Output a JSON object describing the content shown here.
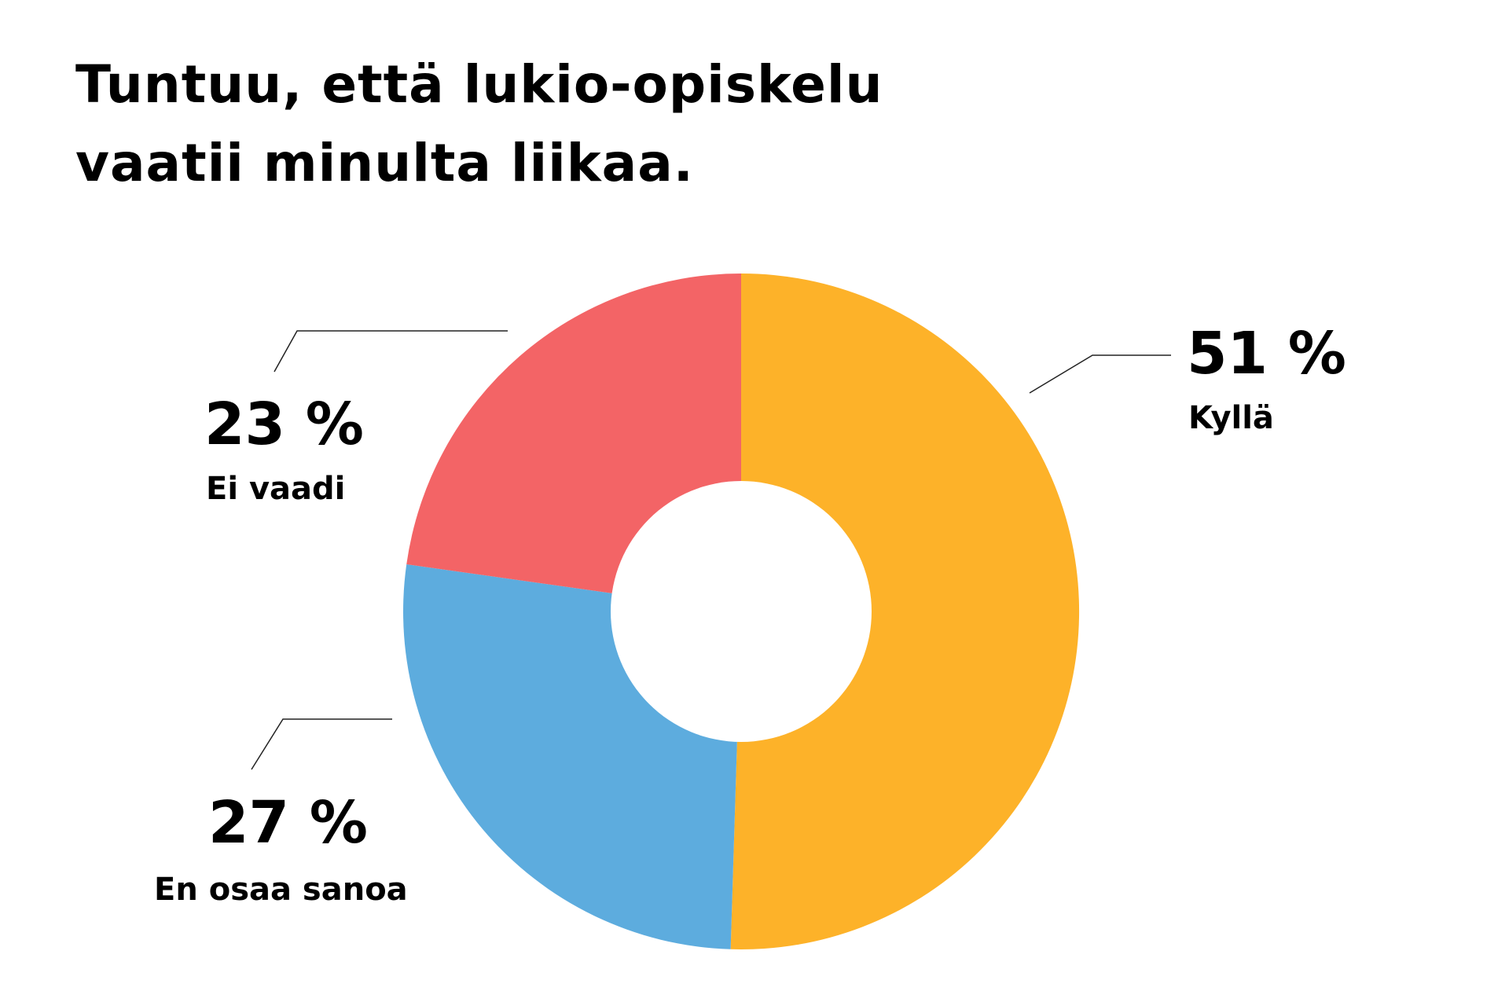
{
  "title": {
    "line1": "Tuntuu, että lukio-opiskelu",
    "line2": "vaatii minulta liikaa."
  },
  "chart_data": {
    "type": "pie",
    "subtype": "donut",
    "title": "Tuntuu, että lukio-opiskelu vaatii minulta liikaa.",
    "slices": [
      {
        "label": "Kyllä",
        "value": 51,
        "display": "51 %",
        "color": "#FDB229"
      },
      {
        "label": "En osaa sanoa",
        "value": 27,
        "display": "27 %",
        "color": "#5DACDE"
      },
      {
        "label": "Ei vaadi",
        "value": 23,
        "display": "23 %",
        "color": "#F36466"
      }
    ],
    "start_angle": "top",
    "direction": "clockwise"
  }
}
